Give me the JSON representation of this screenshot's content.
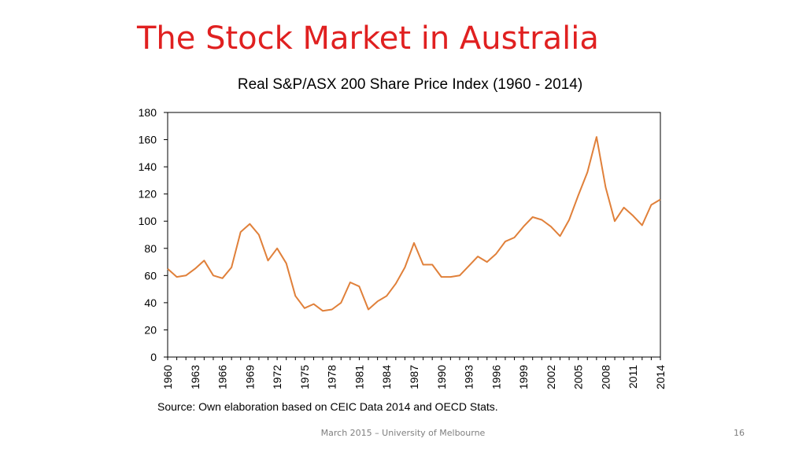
{
  "slide": {
    "title": "The Stock Market in Australia",
    "source": "Source: Own elaboration based on CEIC Data 2014 and OECD Stats.",
    "footer": "March 2015 – University of Melbourne",
    "page_number": "16"
  },
  "colors": {
    "title": "#e02020",
    "series": "#e0803a",
    "footer": "#7f7f7f"
  },
  "chart_data": {
    "type": "line",
    "title": "Real S&P/ASX 200 Share Price Index (1960 - 2014)",
    "xlabel": "",
    "ylabel": "",
    "ylim": [
      0,
      180
    ],
    "yticks": [
      0,
      20,
      40,
      60,
      80,
      100,
      120,
      140,
      160,
      180
    ],
    "xticks": [
      1960,
      1963,
      1966,
      1969,
      1972,
      1975,
      1978,
      1981,
      1984,
      1987,
      1990,
      1993,
      1996,
      1999,
      2002,
      2005,
      2008,
      2011,
      2014
    ],
    "grid": false,
    "legend": "none",
    "series": [
      {
        "x": [
          1960,
          1961,
          1962,
          1963,
          1964,
          1965,
          1966,
          1967,
          1968,
          1969,
          1970,
          1971,
          1972,
          1973,
          1974,
          1975,
          1976,
          1977,
          1978,
          1979,
          1980,
          1981,
          1982,
          1983,
          1984,
          1985,
          1986,
          1987,
          1988,
          1989,
          1990,
          1991,
          1992,
          1993,
          1994,
          1995,
          1996,
          1997,
          1998,
          1999,
          2000,
          2001,
          2002,
          2003,
          2004,
          2005,
          2006,
          2007,
          2008,
          2009,
          2010,
          2011,
          2012,
          2013,
          2014
        ],
        "values": [
          65,
          59,
          60,
          65,
          71,
          60,
          58,
          66,
          92,
          98,
          90,
          71,
          80,
          69,
          45,
          36,
          39,
          34,
          35,
          40,
          55,
          52,
          35,
          41,
          45,
          54,
          66,
          84,
          68,
          68,
          59,
          59,
          60,
          67,
          74,
          70,
          76,
          85,
          88,
          96,
          103,
          101,
          96,
          89,
          101,
          119,
          136,
          162,
          125,
          100,
          110,
          104,
          97,
          112,
          116
        ]
      }
    ]
  }
}
